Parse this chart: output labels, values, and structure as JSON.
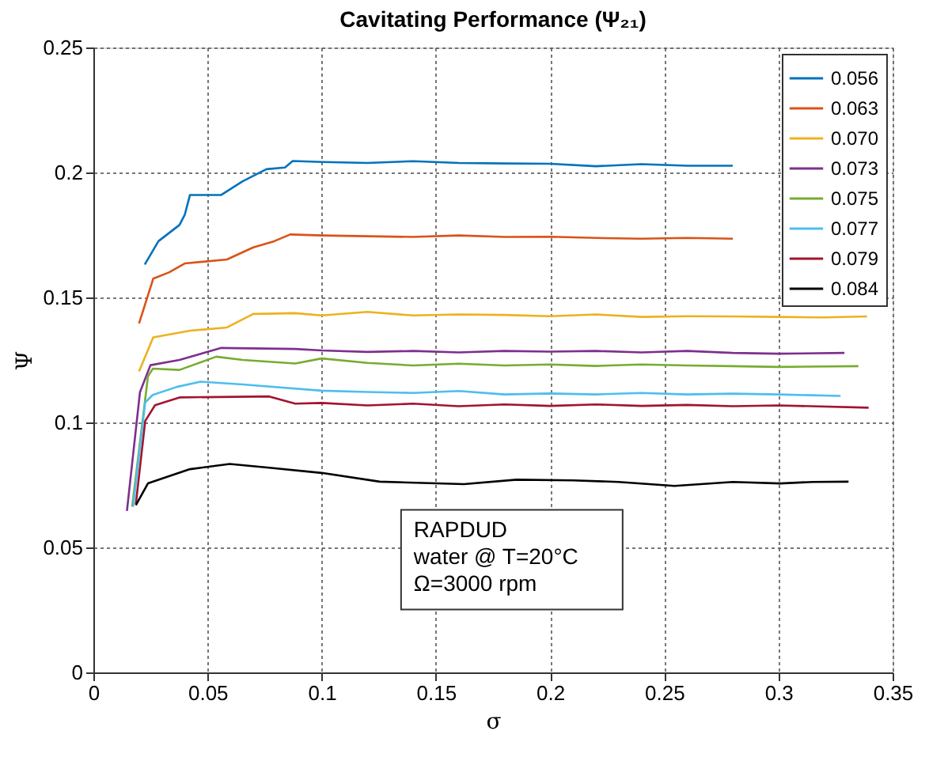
{
  "chart_data": {
    "type": "line",
    "title": "Cavitating Performance (Ψ₂₁)",
    "xlabel": "σ",
    "ylabel": "Ψ",
    "xlim": [
      0,
      0.35
    ],
    "xticks": [
      0,
      0.05,
      0.1,
      0.15,
      0.2,
      0.25,
      0.3,
      0.35
    ],
    "ylim": [
      0,
      0.25
    ],
    "yticks": [
      0,
      0.05,
      0.1,
      0.15,
      0.2,
      0.25
    ],
    "grid": true,
    "legend": "top right",
    "line_style": "solid",
    "marker": "none",
    "annotations": [
      "RAPDUD",
      "water @ T=20°C",
      "Ω=3000 rpm"
    ],
    "series": [
      {
        "name": "0.056",
        "color": "#0072bd",
        "x": [
          0.0225,
          0.0285,
          0.0377,
          0.04,
          0.0423,
          0.056,
          0.0654,
          0.0758,
          0.0839,
          0.0873,
          0.1,
          0.12,
          0.14,
          0.16,
          0.18,
          0.2,
          0.22,
          0.24,
          0.26,
          0.28
        ],
        "values": [
          0.1632,
          0.1725,
          0.179,
          0.183,
          0.191,
          0.191,
          0.1965,
          0.2013,
          0.202,
          0.2046,
          0.2042,
          0.2038,
          0.2045,
          0.2038,
          0.2036,
          0.2035,
          0.2025,
          0.2033,
          0.2027,
          0.2027
        ]
      },
      {
        "name": "0.063",
        "color": "#d95319",
        "x": [
          0.02,
          0.0262,
          0.0331,
          0.04,
          0.0585,
          0.07,
          0.0792,
          0.0862,
          0.1,
          0.12,
          0.14,
          0.16,
          0.18,
          0.2,
          0.22,
          0.24,
          0.26,
          0.28
        ],
        "values": [
          0.1396,
          0.1575,
          0.16,
          0.1636,
          0.1652,
          0.17,
          0.1725,
          0.1752,
          0.1748,
          0.1745,
          0.1742,
          0.1748,
          0.1742,
          0.1743,
          0.1738,
          0.1735,
          0.1738,
          0.1735
        ]
      },
      {
        "name": "0.070",
        "color": "#edb120",
        "x": [
          0.02,
          0.0262,
          0.0424,
          0.0585,
          0.07,
          0.0884,
          0.1,
          0.12,
          0.14,
          0.16,
          0.18,
          0.2,
          0.22,
          0.24,
          0.26,
          0.28,
          0.3,
          0.32,
          0.3388
        ],
        "values": [
          0.1204,
          0.134,
          0.1367,
          0.138,
          0.1434,
          0.1437,
          0.1428,
          0.1442,
          0.1428,
          0.1432,
          0.143,
          0.1425,
          0.1432,
          0.1422,
          0.1425,
          0.1424,
          0.1422,
          0.142,
          0.1424
        ]
      },
      {
        "name": "0.073",
        "color": "#7e2f8e",
        "x": [
          0.0147,
          0.0204,
          0.025,
          0.0377,
          0.056,
          0.0884,
          0.1,
          0.12,
          0.14,
          0.16,
          0.18,
          0.2,
          0.22,
          0.24,
          0.26,
          0.28,
          0.3,
          0.3289
        ],
        "values": [
          0.0646,
          0.1121,
          0.1229,
          0.125,
          0.1298,
          0.1294,
          0.1288,
          0.1282,
          0.1286,
          0.128,
          0.1286,
          0.1283,
          0.1286,
          0.128,
          0.1286,
          0.1278,
          0.1275,
          0.1278
        ]
      },
      {
        "name": "0.075",
        "color": "#77ac30",
        "x": [
          0.017,
          0.0239,
          0.026,
          0.0377,
          0.0538,
          0.0654,
          0.0884,
          0.1,
          0.12,
          0.14,
          0.16,
          0.18,
          0.2,
          0.22,
          0.24,
          0.26,
          0.28,
          0.3,
          0.335
        ],
        "values": [
          0.0663,
          0.1184,
          0.1215,
          0.121,
          0.1263,
          0.125,
          0.1236,
          0.1256,
          0.1238,
          0.1228,
          0.1235,
          0.1228,
          0.1232,
          0.1226,
          0.1232,
          0.1228,
          0.1225,
          0.1222,
          0.1225
        ]
      },
      {
        "name": "0.077",
        "color": "#4dbeee",
        "x": [
          0.0174,
          0.0227,
          0.026,
          0.0365,
          0.0469,
          0.0654,
          0.1,
          0.12,
          0.14,
          0.16,
          0.18,
          0.2,
          0.22,
          0.24,
          0.26,
          0.28,
          0.3,
          0.3272
        ],
        "values": [
          0.0663,
          0.108,
          0.111,
          0.1142,
          0.1163,
          0.1152,
          0.1127,
          0.1122,
          0.1118,
          0.1126,
          0.1112,
          0.1116,
          0.1112,
          0.1118,
          0.1112,
          0.1115,
          0.1112,
          0.1106
        ]
      },
      {
        "name": "0.079",
        "color": "#a2142f",
        "x": [
          0.0186,
          0.0227,
          0.027,
          0.0377,
          0.077,
          0.0884,
          0.1,
          0.12,
          0.14,
          0.16,
          0.18,
          0.2,
          0.22,
          0.24,
          0.26,
          0.28,
          0.3,
          0.3395
        ],
        "values": [
          0.0673,
          0.1006,
          0.1069,
          0.11,
          0.1104,
          0.1075,
          0.1078,
          0.1068,
          0.1075,
          0.1065,
          0.1072,
          0.1066,
          0.1072,
          0.1066,
          0.107,
          0.1065,
          0.1068,
          0.1059
        ]
      },
      {
        "name": "0.084",
        "color": "#000000",
        "x": [
          0.0186,
          0.0239,
          0.0423,
          0.0597,
          0.077,
          0.1,
          0.1254,
          0.1623,
          0.1853,
          0.21,
          0.23,
          0.2545,
          0.28,
          0.3007,
          0.315,
          0.3307
        ],
        "values": [
          0.0669,
          0.0756,
          0.0813,
          0.0834,
          0.0819,
          0.0798,
          0.0763,
          0.0753,
          0.0771,
          0.0768,
          0.0762,
          0.0746,
          0.0762,
          0.0756,
          0.0762,
          0.0763
        ]
      }
    ]
  }
}
